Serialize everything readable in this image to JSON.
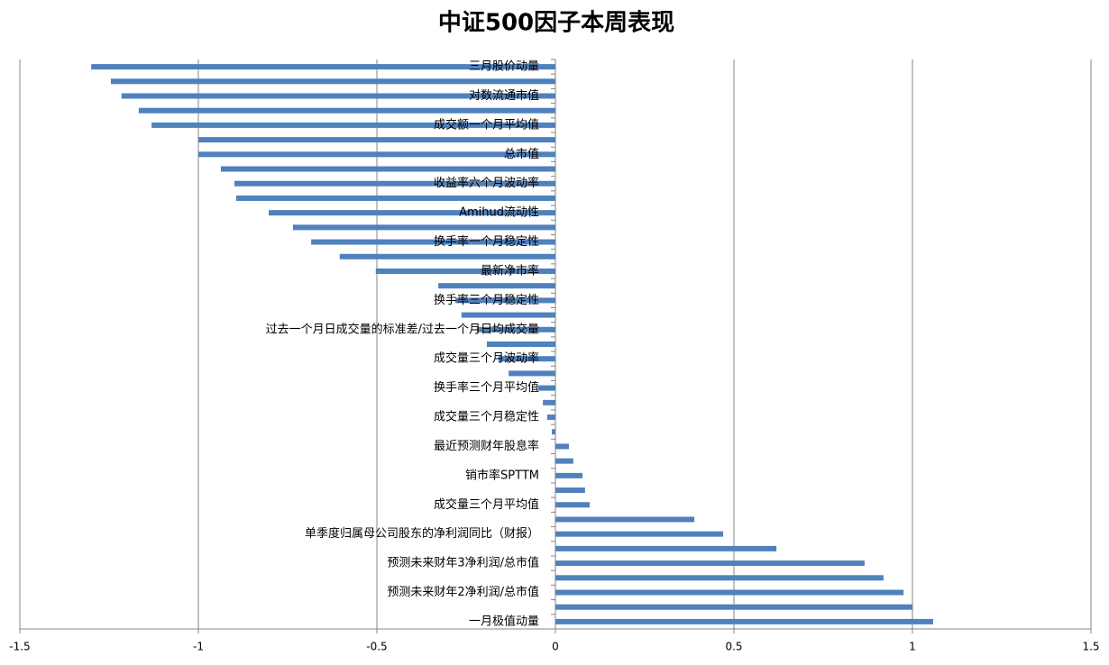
{
  "chart_data": {
    "type": "bar",
    "orientation": "horizontal",
    "title": "中证500因子本周表现",
    "categories": [
      "三月股价动量",
      null,
      "对数流通市值",
      null,
      "成交额一个月平均值",
      null,
      "总市值",
      null,
      "收益率六个月波动率",
      null,
      "Amihud流动性",
      null,
      "换手率一个月稳定性",
      null,
      "最新净市率",
      null,
      "换手率三个月稳定性",
      null,
      "过去一个月日成交量的标准差/过去一个月日均成交量",
      null,
      "成交量三个月波动率",
      null,
      "换手率三个月平均值",
      null,
      "成交量三个月稳定性",
      null,
      "最近预测财年股息率",
      null,
      "销市率SPTTM",
      null,
      "成交量三个月平均值",
      null,
      "单季度归属母公司股东的净利润同比（财报）",
      null,
      "预测未来财年3净利润/总市值",
      null,
      "预测未来财年2净利润/总市值",
      null,
      "一月极值动量"
    ],
    "values": [
      -1.3,
      -1.245,
      -1.215,
      -1.167,
      -1.131,
      -1.0,
      -1.0,
      -0.937,
      -0.899,
      -0.894,
      -0.803,
      -0.735,
      -0.684,
      -0.604,
      -0.503,
      -0.328,
      -0.28,
      -0.263,
      -0.22,
      -0.192,
      -0.16,
      -0.131,
      -0.048,
      -0.035,
      -0.023,
      -0.01,
      0.038,
      0.05,
      0.076,
      0.083,
      0.096,
      0.389,
      0.47,
      0.619,
      0.866,
      0.919,
      0.975,
      1.0,
      1.058
    ],
    "color": "#4f81bd",
    "xlim": [
      -1.5,
      1.5
    ],
    "xticks": [
      -1.5,
      -1,
      -0.5,
      0,
      0.5,
      1,
      1.5
    ],
    "grid": true
  }
}
